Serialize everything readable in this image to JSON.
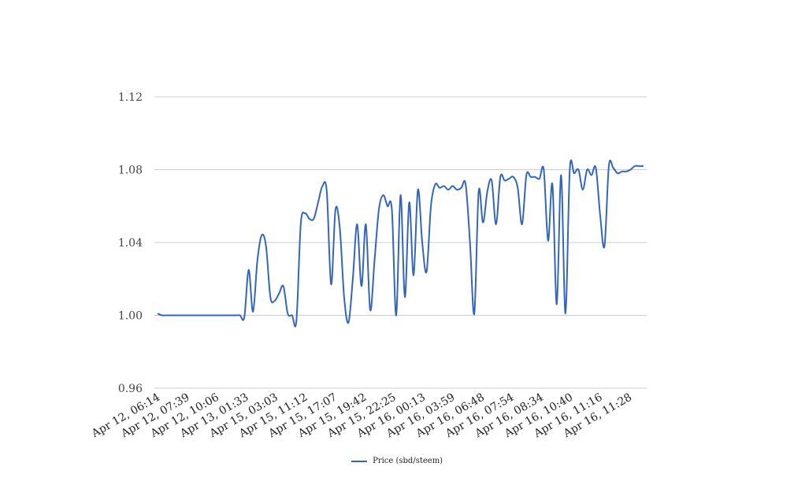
{
  "chart_data": {
    "type": "line",
    "title": "",
    "xlabel": "",
    "ylabel": "",
    "ylim": [
      0.96,
      1.12
    ],
    "yticks": [
      "0.96",
      "1.00",
      "1.04",
      "1.08",
      "1.12"
    ],
    "ytick_values": [
      0.96,
      1.0,
      1.04,
      1.08,
      1.12
    ],
    "xtick_labels": [
      "Apr 12, 06:14",
      "Apr 12, 07:39",
      "Apr 12, 10:06",
      "Apr 13, 01:33",
      "Apr 15, 03:03",
      "Apr 15, 11:12",
      "Apr 15, 17:07",
      "Apr 15, 19:42",
      "Apr 15, 22:25",
      "Apr 16, 00:13",
      "Apr 16, 03:59",
      "Apr 16, 06:48",
      "Apr 16, 07:54",
      "Apr 16, 08:34",
      "Apr 16, 10:40",
      "Apr 16, 11:16",
      "Apr 16, 11:28"
    ],
    "grid": true,
    "legend_position": "bottom-center",
    "series": [
      {
        "name": "Price (sbd/steem)",
        "color": "#3366bb",
        "values": [
          1.001,
          1.0,
          1.0,
          1.0,
          1.0,
          1.0,
          1.0,
          1.0,
          1.0,
          1.0,
          1.0,
          1.0,
          1.0,
          1.0,
          1.0,
          1.0,
          1.0,
          1.0,
          1.0,
          1.0,
          0.999,
          1.025,
          1.002,
          1.03,
          1.044,
          1.038,
          1.01,
          1.008,
          1.012,
          1.016,
          1.001,
          1.0,
          0.997,
          1.05,
          1.056,
          1.053,
          1.053,
          1.062,
          1.071,
          1.068,
          1.017,
          1.058,
          1.048,
          1.01,
          0.996,
          1.02,
          1.05,
          1.016,
          1.05,
          1.003,
          1.03,
          1.058,
          1.066,
          1.06,
          1.058,
          1.0,
          1.066,
          1.01,
          1.062,
          1.022,
          1.069,
          1.04,
          1.024,
          1.06,
          1.072,
          1.07,
          1.071,
          1.069,
          1.071,
          1.069,
          1.07,
          1.072,
          1.04,
          1.001,
          1.068,
          1.051,
          1.068,
          1.074,
          1.05,
          1.076,
          1.074,
          1.075,
          1.076,
          1.07,
          1.05,
          1.077,
          1.076,
          1.076,
          1.075,
          1.08,
          1.041,
          1.072,
          1.006,
          1.077,
          1.001,
          1.08,
          1.078,
          1.08,
          1.069,
          1.08,
          1.077,
          1.081,
          1.055,
          1.038,
          1.082,
          1.081,
          1.078,
          1.079,
          1.079,
          1.08,
          1.082,
          1.082,
          1.082
        ]
      }
    ]
  }
}
